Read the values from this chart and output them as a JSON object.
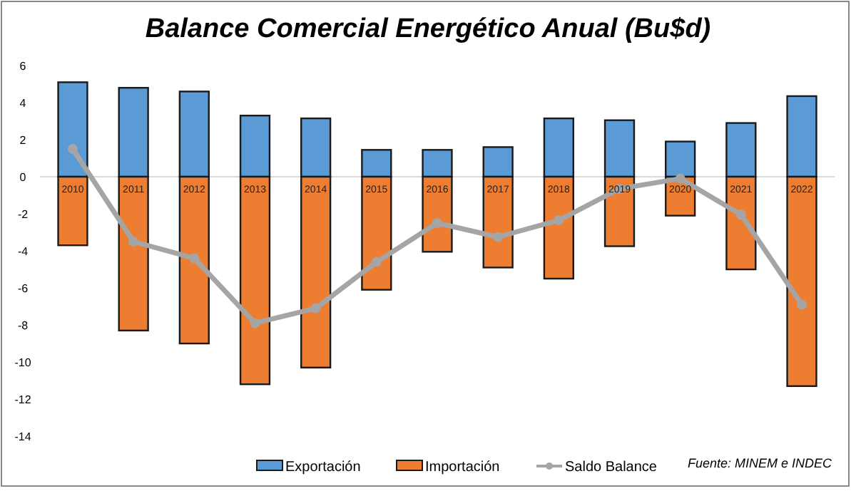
{
  "chart_data": {
    "type": "bar",
    "title": "Balance Comercial Energético Anual (Bu$d)",
    "stacked": true,
    "categories": [
      "2010",
      "2011",
      "2012",
      "2013",
      "2014",
      "2015",
      "2016",
      "2017",
      "2018",
      "2019",
      "2020",
      "2021",
      "2022"
    ],
    "series": [
      {
        "name": "Exportación",
        "color": "#5b9bd5",
        "values": [
          5.1,
          4.8,
          4.6,
          3.3,
          3.15,
          1.45,
          1.45,
          1.6,
          3.15,
          3.05,
          1.9,
          2.9,
          4.35
        ]
      },
      {
        "name": "Importación",
        "color": "#ed7d31",
        "values": [
          -3.7,
          -8.3,
          -9.0,
          -11.2,
          -10.3,
          -6.1,
          -4.05,
          -4.9,
          -5.5,
          -3.75,
          -2.1,
          -5.0,
          -11.3
        ]
      },
      {
        "name": "Saldo Balance",
        "type": "line",
        "color": "#a5a5a5",
        "marker": "circle",
        "values": [
          1.5,
          -3.5,
          -4.4,
          -7.9,
          -7.1,
          -4.6,
          -2.5,
          -3.25,
          -2.35,
          -0.65,
          -0.1,
          -2.05,
          -6.9
        ]
      }
    ],
    "ylim": [
      -14,
      6
    ],
    "yticks": [
      -14,
      -12,
      -10,
      -8,
      -6,
      -4,
      -2,
      0,
      2,
      4,
      6
    ],
    "grid": false,
    "legend": "bottom",
    "annotations": [
      "Fuente: MINEM e INDEC"
    ]
  }
}
